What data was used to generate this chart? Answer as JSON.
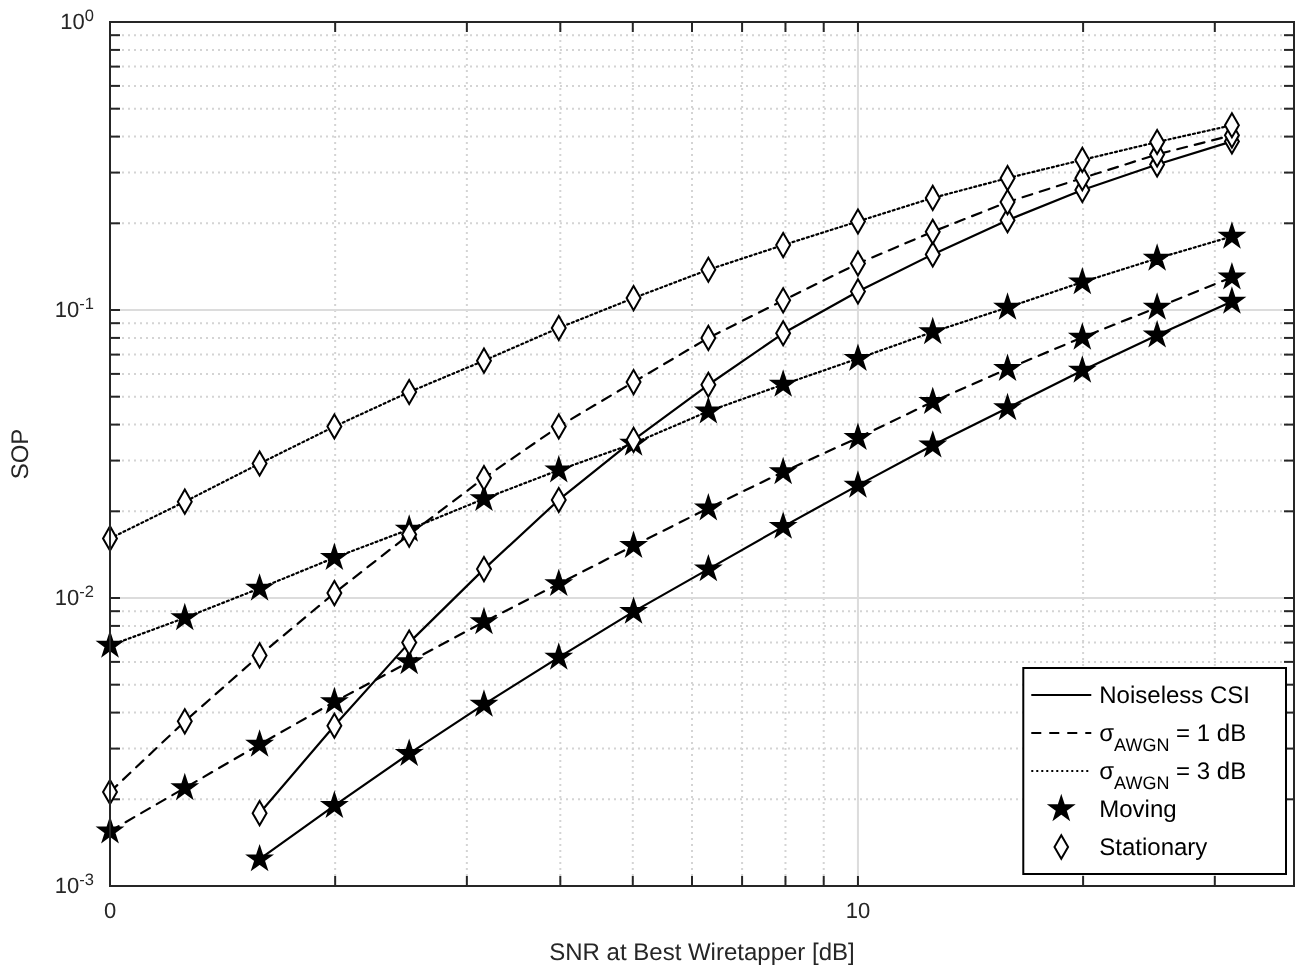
{
  "chart_data": {
    "type": "line",
    "xlabel": "SNR at Best Wiretapper [dB]",
    "ylabel": "SOP",
    "log": "y",
    "grid": true,
    "legend": "bottom right",
    "xlim": [
      0,
      15.83
    ],
    "xticks": [
      {
        "value": 0,
        "label": "0"
      },
      {
        "value": 3.0103,
        "label": null
      },
      {
        "value": 4.7712,
        "label": null
      },
      {
        "value": 6.0206,
        "label": null
      },
      {
        "value": 6.9897,
        "label": null
      },
      {
        "value": 7.7815,
        "label": null
      },
      {
        "value": 8.451,
        "label": null
      },
      {
        "value": 9.0309,
        "label": null
      },
      {
        "value": 9.5424,
        "label": null
      },
      {
        "value": 10,
        "label": "10"
      },
      {
        "value": 13.0103,
        "label": null
      },
      {
        "value": 14.7712,
        "label": null
      }
    ],
    "ylim": [
      0.001,
      1
    ],
    "yticks": [
      {
        "value": 0.001,
        "label": "10$^{-3}$"
      },
      {
        "value": 0.002,
        "label": null
      },
      {
        "value": 0.003,
        "label": null
      },
      {
        "value": 0.004,
        "label": null
      },
      {
        "value": 0.005,
        "label": null
      },
      {
        "value": 0.006,
        "label": null
      },
      {
        "value": 0.007,
        "label": null
      },
      {
        "value": 0.008,
        "label": null
      },
      {
        "value": 0.009,
        "label": null
      },
      {
        "value": 0.01,
        "label": "10$^{-2}$"
      },
      {
        "value": 0.02,
        "label": null
      },
      {
        "value": 0.03,
        "label": null
      },
      {
        "value": 0.04,
        "label": null
      },
      {
        "value": 0.05,
        "label": null
      },
      {
        "value": 0.06,
        "label": null
      },
      {
        "value": 0.07,
        "label": null
      },
      {
        "value": 0.08,
        "label": null
      },
      {
        "value": 0.09,
        "label": null
      },
      {
        "value": 0.1,
        "label": "10$^{-1}$"
      },
      {
        "value": 0.2,
        "label": null
      },
      {
        "value": 0.3,
        "label": null
      },
      {
        "value": 0.4,
        "label": null
      },
      {
        "value": 0.5,
        "label": null
      },
      {
        "value": 0.6,
        "label": null
      },
      {
        "value": 0.7,
        "label": null
      },
      {
        "value": 0.8,
        "label": null
      },
      {
        "value": 0.9,
        "label": null
      },
      {
        "value": 1,
        "label": "10$^{0}$"
      }
    ],
    "series": [
      {
        "line_style": "solid",
        "marker": "star",
        "color": "#000000",
        "x": [
          2,
          3,
          4,
          5,
          6,
          7,
          8,
          9,
          10,
          11,
          12,
          13,
          14,
          15
        ],
        "values": [
          0.00124,
          0.0019,
          0.00288,
          0.00427,
          0.00622,
          0.00897,
          0.0126,
          0.0177,
          0.0246,
          0.0339,
          0.0457,
          0.0617,
          0.0817,
          0.107
        ]
      },
      {
        "line_style": "dashed",
        "marker": "star",
        "color": "#000000",
        "x": [
          0,
          1,
          2,
          3,
          4,
          5,
          6,
          7,
          8,
          9,
          10,
          11,
          12,
          13,
          14,
          15
        ],
        "values": [
          0.00155,
          0.00219,
          0.0031,
          0.00436,
          0.006,
          0.00826,
          0.0112,
          0.0152,
          0.0205,
          0.0274,
          0.036,
          0.048,
          0.0625,
          0.0803,
          0.102,
          0.13
        ]
      },
      {
        "line_style": "dotted",
        "marker": "star",
        "color": "#000000",
        "x": [
          0,
          1,
          2,
          3,
          4,
          5,
          6,
          7,
          8,
          9,
          10,
          11,
          12,
          13,
          14,
          15
        ],
        "values": [
          0.00684,
          0.00853,
          0.0108,
          0.0138,
          0.0173,
          0.0221,
          0.0278,
          0.0344,
          0.0445,
          0.0551,
          0.0678,
          0.0839,
          0.102,
          0.125,
          0.151,
          0.18
        ]
      },
      {
        "line_style": "solid",
        "marker": "diamond",
        "color": "#000000",
        "x": [
          2,
          3,
          4,
          5,
          6,
          7,
          8,
          9,
          10,
          11,
          12,
          13,
          14,
          15
        ],
        "values": [
          0.00179,
          0.0036,
          0.007,
          0.0126,
          0.0219,
          0.0354,
          0.055,
          0.083,
          0.116,
          0.156,
          0.205,
          0.261,
          0.32,
          0.385
        ]
      },
      {
        "line_style": "dashed",
        "marker": "diamond",
        "color": "#000000",
        "x": [
          0,
          1,
          2,
          3,
          4,
          5,
          6,
          7,
          8,
          9,
          10,
          11,
          12,
          13,
          14,
          15
        ],
        "values": [
          0.00212,
          0.00373,
          0.00632,
          0.0104,
          0.0166,
          0.0261,
          0.0394,
          0.0562,
          0.08,
          0.108,
          0.145,
          0.187,
          0.237,
          0.287,
          0.347,
          0.404
        ]
      },
      {
        "line_style": "dotted",
        "marker": "diamond",
        "color": "#000000",
        "x": [
          0,
          1,
          2,
          3,
          4,
          5,
          6,
          7,
          8,
          9,
          10,
          11,
          12,
          13,
          14,
          15
        ],
        "values": [
          0.0161,
          0.0216,
          0.0293,
          0.0394,
          0.0519,
          0.0667,
          0.0866,
          0.11,
          0.138,
          0.168,
          0.203,
          0.245,
          0.287,
          0.332,
          0.383,
          0.438
        ]
      },
      {
        "type": "line",
        "line_style": "solid",
        "marker": "none",
        "color": "#000000",
        "name": "Noiseless CSI"
      },
      {
        "type": "line",
        "line_style": "dashed",
        "marker": "none",
        "color": "#000000",
        "name": "σ$_{AWGN}$ = 1 dB"
      },
      {
        "type": "line",
        "line_style": "dotted",
        "marker": "none",
        "color": "#000000",
        "name": "σ$_{AWGN}$ = 3 dB"
      },
      {
        "type": "scatter",
        "marker": "star",
        "color": "#000000",
        "name": "Moving"
      },
      {
        "type": "scatter",
        "marker": "diamond",
        "color": "#000000",
        "name": "Stationary"
      }
    ]
  }
}
